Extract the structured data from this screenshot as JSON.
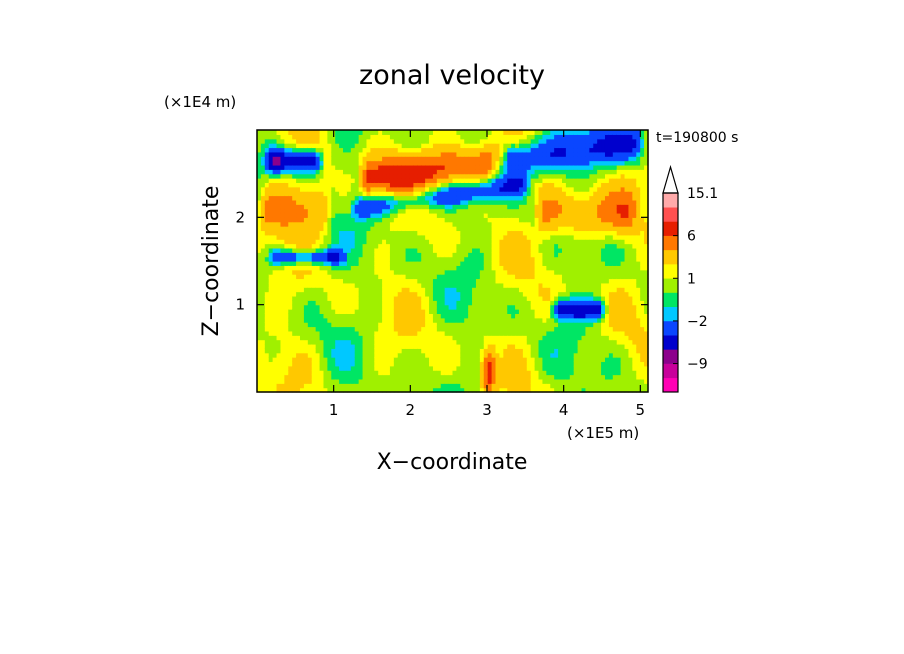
{
  "chart_data": {
    "type": "heatmap",
    "title": "zonal velocity",
    "xlabel": "X−coordinate",
    "ylabel": "Z−coordinate",
    "x_scale_label": "(×1E5 m)",
    "y_scale_label": "(×1E4 m)",
    "time_label": "t=190800 s",
    "xlim": [
      0,
      5.1
    ],
    "ylim": [
      0,
      3.0
    ],
    "x_ticks": [
      1,
      2,
      3,
      4,
      5
    ],
    "x_tick_labels": [
      "1",
      "2",
      "3",
      "4",
      "5"
    ],
    "y_ticks": [
      1,
      2
    ],
    "y_tick_labels": [
      "1",
      "2"
    ],
    "colorbar": {
      "levels": [
        -15,
        -12,
        -9,
        -6,
        -4,
        -2,
        -1,
        0,
        1,
        2,
        4,
        6,
        9,
        12,
        15.1
      ],
      "colors": [
        "#ff00b4",
        "#c8009b",
        "#8c008c",
        "#0000cd",
        "#0a46ff",
        "#00c8ff",
        "#00e664",
        "#a0f000",
        "#ffff00",
        "#ffc800",
        "#ff7800",
        "#e61e00",
        "#ff5050",
        "#ffaaaa"
      ],
      "extend_color": "#ffffff",
      "labels": [
        {
          "value": 15.1,
          "text": "15.1"
        },
        {
          "value": 6,
          "text": "6"
        },
        {
          "value": 1,
          "text": "1"
        },
        {
          "value": -2,
          "text": "−2"
        },
        {
          "value": -9,
          "text": "−9"
        }
      ]
    },
    "field_features": [
      {
        "x0": 0.05,
        "x1": 0.9,
        "z": 2.65,
        "dz": 0.14,
        "value": -7
      },
      {
        "x0": 1.3,
        "x1": 3.3,
        "z": 2.55,
        "dz": 0.22,
        "value": 6
      },
      {
        "x0": 1.2,
        "x1": 3.6,
        "z": 2.25,
        "dz": 0.13,
        "value": -4
      },
      {
        "x0": 3.0,
        "x1": 5.1,
        "z": 2.75,
        "dz": 0.22,
        "value": -5
      },
      {
        "x0": 3.6,
        "x1": 5.0,
        "z": 2.05,
        "dz": 0.25,
        "value": 4
      },
      {
        "x0": 0.0,
        "x1": 1.0,
        "z": 2.1,
        "dz": 0.25,
        "value": 4
      },
      {
        "x0": 0.1,
        "x1": 1.2,
        "z": 1.55,
        "dz": 0.09,
        "value": -5
      },
      {
        "x0": 3.8,
        "x1": 4.6,
        "z": 0.95,
        "dz": 0.11,
        "value": -6
      },
      {
        "x0": 2.9,
        "x1": 3.15,
        "z": 0.25,
        "dz": 0.25,
        "value": 9
      }
    ]
  }
}
